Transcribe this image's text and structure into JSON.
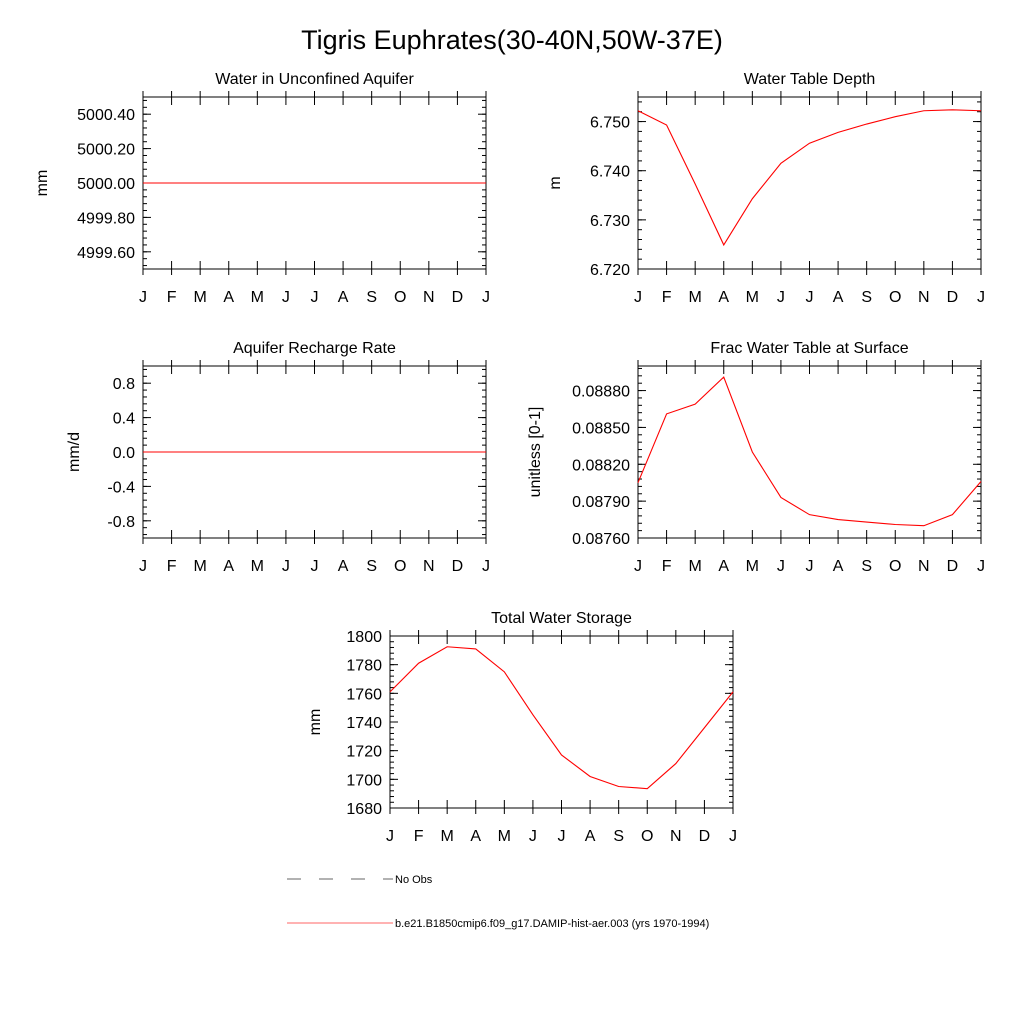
{
  "figure": {
    "title": "Tigris Euphrates(30-40N,50W-37E)"
  },
  "legend": {
    "entries": [
      {
        "label": "No Obs",
        "style": "dashed",
        "color": "#000000"
      },
      {
        "label": "b.e21.B1850cmip6.f09_g17.DAMIP-hist-aer.003 (yrs 1970-1994)",
        "style": "solid",
        "color": "#ff0000"
      }
    ]
  },
  "colors": {
    "series": "#ff0000",
    "axes": "#000000"
  },
  "chart_data": [
    {
      "type": "line",
      "title": "Water in Unconfined Aquifer",
      "xlabel": "",
      "ylabel": "mm",
      "categories": [
        "J",
        "F",
        "M",
        "A",
        "M",
        "J",
        "J",
        "A",
        "S",
        "O",
        "N",
        "D",
        "J"
      ],
      "ylim": [
        4999.5,
        5000.5
      ],
      "yticks": [
        4999.6,
        4999.8,
        5000.0,
        5000.2,
        5000.4
      ],
      "ytick_labels": [
        "4999.60",
        "4999.80",
        "5000.00",
        "5000.20",
        "5000.40"
      ],
      "series": [
        {
          "values": [
            5000,
            5000,
            5000,
            5000,
            5000,
            5000,
            5000,
            5000,
            5000,
            5000,
            5000,
            5000,
            5000
          ]
        }
      ]
    },
    {
      "type": "line",
      "title": "Water Table Depth",
      "xlabel": "",
      "ylabel": "m",
      "categories": [
        "J",
        "F",
        "M",
        "A",
        "M",
        "J",
        "J",
        "A",
        "S",
        "O",
        "N",
        "D",
        "J"
      ],
      "ylim": [
        6.72,
        6.755
      ],
      "yticks": [
        6.72,
        6.73,
        6.74,
        6.75
      ],
      "ytick_labels": [
        "6.720",
        "6.730",
        "6.740",
        "6.750"
      ],
      "series": [
        {
          "values": [
            6.7522,
            6.7493,
            6.7373,
            6.7249,
            6.7343,
            6.7415,
            6.7456,
            6.7478,
            6.7495,
            6.751,
            6.7522,
            6.7524,
            6.7522
          ]
        }
      ]
    },
    {
      "type": "line",
      "title": "Aquifer Recharge Rate",
      "xlabel": "",
      "ylabel": "mm/d",
      "categories": [
        "J",
        "F",
        "M",
        "A",
        "M",
        "J",
        "J",
        "A",
        "S",
        "O",
        "N",
        "D",
        "J"
      ],
      "ylim": [
        -1.0,
        1.0
      ],
      "yticks": [
        -0.8,
        -0.4,
        0.0,
        0.4,
        0.8
      ],
      "ytick_labels": [
        "-0.8",
        "-0.4",
        "0.0",
        "0.4",
        "0.8"
      ],
      "series": [
        {
          "values": [
            0,
            0,
            0,
            0,
            0,
            0,
            0,
            0,
            0,
            0,
            0,
            0,
            0
          ]
        }
      ]
    },
    {
      "type": "line",
      "title": "Frac Water Table at Surface",
      "xlabel": "",
      "ylabel": "unitless [0-1]",
      "categories": [
        "J",
        "F",
        "M",
        "A",
        "M",
        "J",
        "J",
        "A",
        "S",
        "O",
        "N",
        "D",
        "J"
      ],
      "ylim": [
        0.0876,
        0.089
      ],
      "yticks": [
        0.0876,
        0.0879,
        0.0882,
        0.0885,
        0.0888
      ],
      "ytick_labels": [
        "0.08760",
        "0.08790",
        "0.08820",
        "0.08850",
        "0.08880"
      ],
      "series": [
        {
          "values": [
            0.08805,
            0.08861,
            0.08869,
            0.08891,
            0.0883,
            0.08793,
            0.08779,
            0.08775,
            0.08773,
            0.08771,
            0.0877,
            0.08779,
            0.08806
          ]
        }
      ]
    },
    {
      "type": "line",
      "title": "Total Water Storage",
      "xlabel": "",
      "ylabel": "mm",
      "categories": [
        "J",
        "F",
        "M",
        "A",
        "M",
        "J",
        "J",
        "A",
        "S",
        "O",
        "N",
        "D",
        "J"
      ],
      "ylim": [
        1680,
        1800
      ],
      "yticks": [
        1680,
        1700,
        1720,
        1740,
        1760,
        1780,
        1800
      ],
      "ytick_labels": [
        "1680",
        "1700",
        "1720",
        "1740",
        "1760",
        "1780",
        "1800"
      ],
      "series": [
        {
          "values": [
            1761,
            1781,
            1792.5,
            1791,
            1775,
            1745,
            1717,
            1702,
            1695,
            1693.5,
            1711,
            1736,
            1761
          ]
        }
      ]
    }
  ]
}
